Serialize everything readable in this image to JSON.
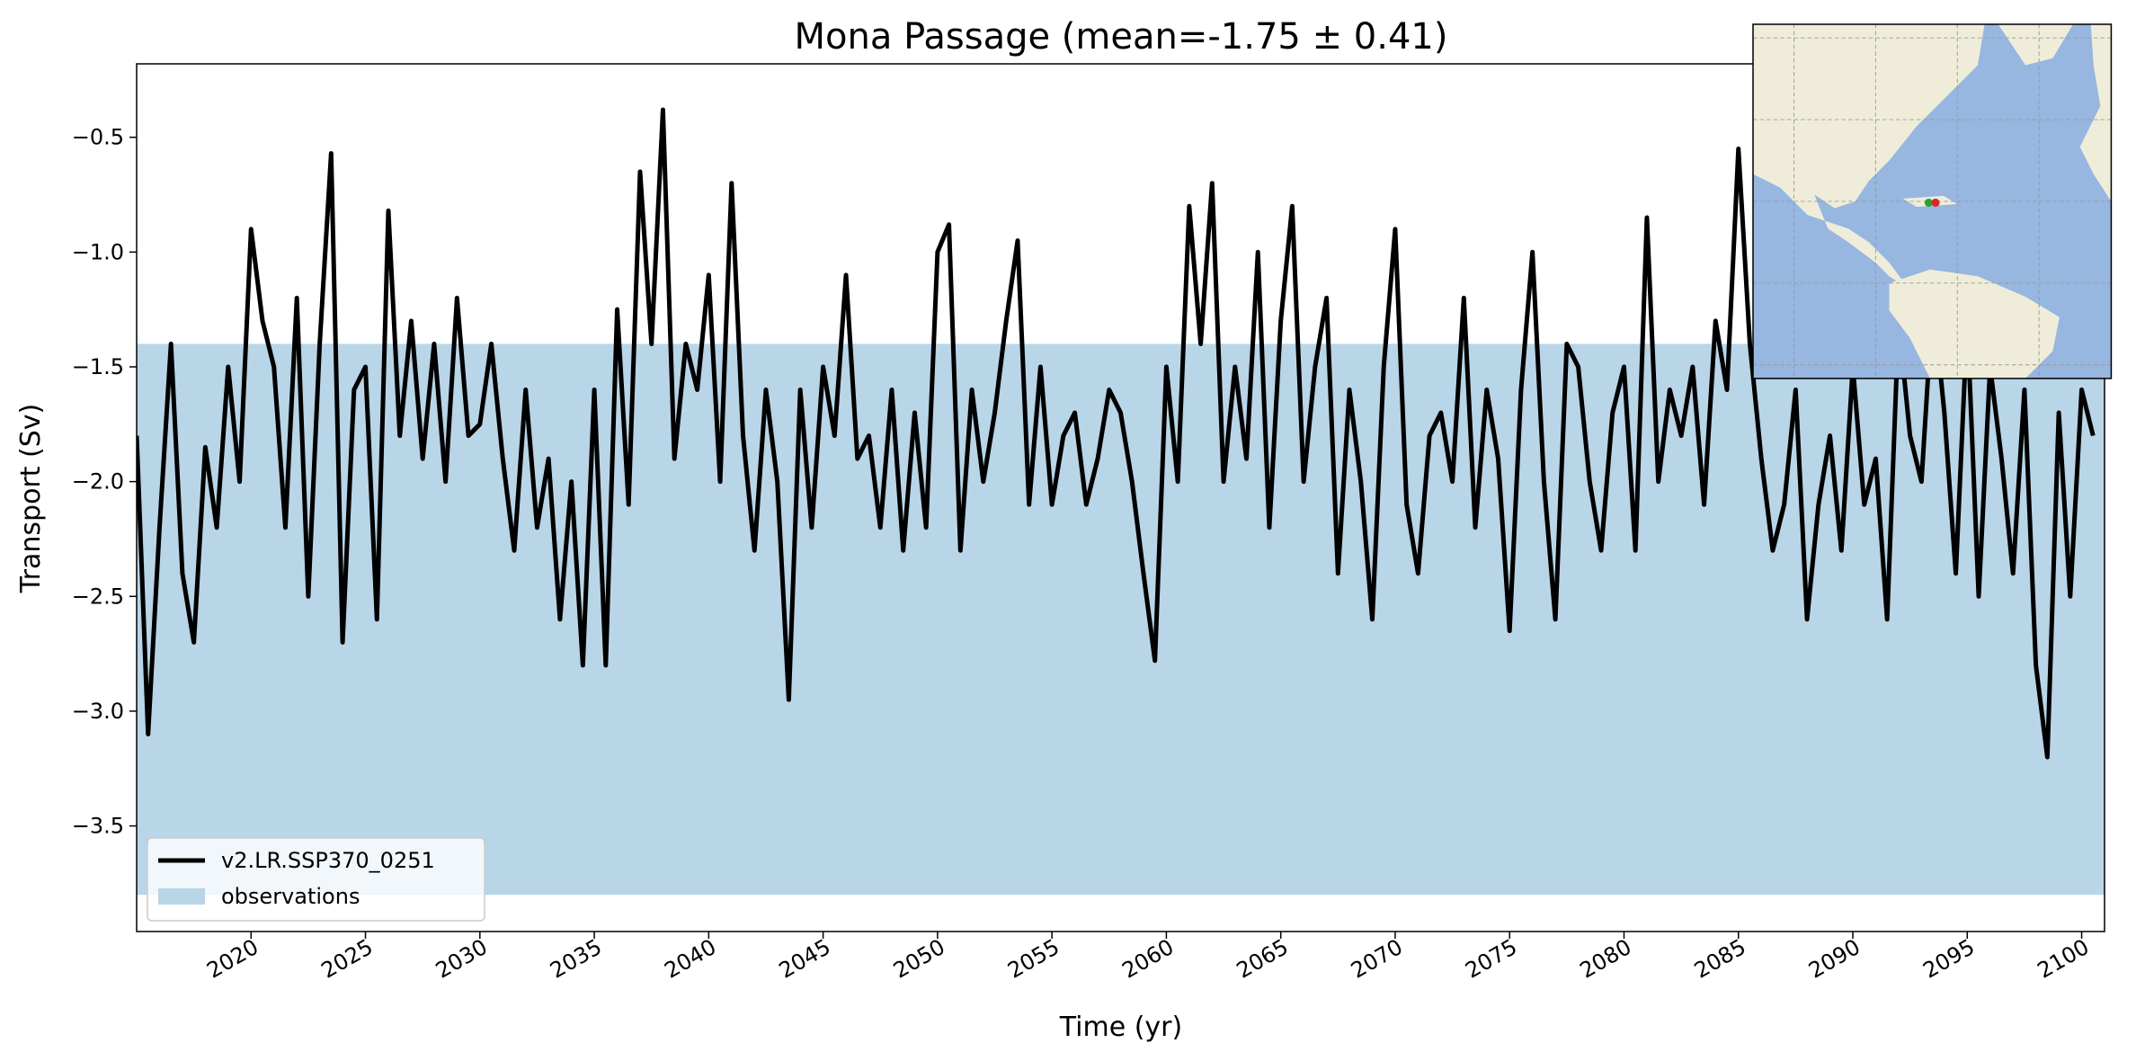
{
  "chart_data": {
    "type": "line",
    "title": "Mona Passage (mean=-1.75 ± 0.41)",
    "xlabel": "Time (yr)",
    "ylabel": "Transport (Sv)",
    "xlim": [
      2015,
      2101
    ],
    "ylim": [
      -3.96,
      -0.18
    ],
    "xticks": [
      2020,
      2025,
      2030,
      2035,
      2040,
      2045,
      2050,
      2055,
      2060,
      2065,
      2070,
      2075,
      2080,
      2085,
      2090,
      2095,
      2100
    ],
    "yticks": [
      {
        "value": -3.5,
        "label": "−3.5"
      },
      {
        "value": -3.0,
        "label": "−3.0"
      },
      {
        "value": -2.5,
        "label": "−2.5"
      },
      {
        "value": -2.0,
        "label": "−2.0"
      },
      {
        "value": -1.5,
        "label": "−1.5"
      },
      {
        "value": -1.0,
        "label": "−1.0"
      },
      {
        "value": -0.5,
        "label": "−0.5"
      }
    ],
    "legend": "lower left",
    "bands": [
      {
        "name": "observations",
        "color": "#b9d5e8",
        "range": [
          -1.4,
          -3.8
        ]
      }
    ],
    "x": [
      2015,
      2015.5,
      2016,
      2016.5,
      2017,
      2017.5,
      2018,
      2018.5,
      2019,
      2019.5,
      2020,
      2020.5,
      2021,
      2021.5,
      2022,
      2022.5,
      2023,
      2023.5,
      2024,
      2024.5,
      2025,
      2025.5,
      2026,
      2026.5,
      2027,
      2027.5,
      2028,
      2028.5,
      2029,
      2029.5,
      2030,
      2030.5,
      2031,
      2031.5,
      2032,
      2032.5,
      2033,
      2033.5,
      2034,
      2034.5,
      2035,
      2035.5,
      2036,
      2036.5,
      2037,
      2037.5,
      2038,
      2038.5,
      2039,
      2039.5,
      2040,
      2040.5,
      2041,
      2041.5,
      2042,
      2042.5,
      2043,
      2043.5,
      2044,
      2044.5,
      2045,
      2045.5,
      2046,
      2046.5,
      2047,
      2047.5,
      2048,
      2048.5,
      2049,
      2049.5,
      2050,
      2050.5,
      2051,
      2051.5,
      2052,
      2052.5,
      2053,
      2053.5,
      2054,
      2054.5,
      2055,
      2055.5,
      2056,
      2056.5,
      2057,
      2057.5,
      2058,
      2058.5,
      2059,
      2059.5,
      2060,
      2060.5,
      2061,
      2061.5,
      2062,
      2062.5,
      2063,
      2063.5,
      2064,
      2064.5,
      2065,
      2065.5,
      2066,
      2066.5,
      2067,
      2067.5,
      2068,
      2068.5,
      2069,
      2069.5,
      2070,
      2070.5,
      2071,
      2071.5,
      2072,
      2072.5,
      2073,
      2073.5,
      2074,
      2074.5,
      2075,
      2075.5,
      2076,
      2076.5,
      2077,
      2077.5,
      2078,
      2078.5,
      2079,
      2079.5,
      2080,
      2080.5,
      2081,
      2081.5,
      2082,
      2082.5,
      2083,
      2083.5,
      2084,
      2084.5,
      2085,
      2085.5,
      2086,
      2086.5,
      2087,
      2087.5,
      2088,
      2088.5,
      2089,
      2089.5,
      2090,
      2090.5,
      2091,
      2091.5,
      2092,
      2092.5,
      2093,
      2093.5,
      2094,
      2094.5,
      2095,
      2095.5,
      2096,
      2096.5,
      2097,
      2097.5,
      2098,
      2098.5,
      2099,
      2099.5,
      2100,
      2100.5
    ],
    "series": [
      {
        "name": "v2.LR.SSP370_0251",
        "color": "#000000",
        "values": [
          -1.8,
          -3.1,
          -2.2,
          -1.4,
          -2.4,
          -2.7,
          -1.85,
          -2.2,
          -1.5,
          -2.0,
          -0.9,
          -1.3,
          -1.5,
          -2.2,
          -1.2,
          -2.5,
          -1.4,
          -0.57,
          -2.7,
          -1.6,
          -1.5,
          -2.6,
          -0.82,
          -1.8,
          -1.3,
          -1.9,
          -1.4,
          -2.0,
          -1.2,
          -1.8,
          -1.75,
          -1.4,
          -1.9,
          -2.3,
          -1.6,
          -2.2,
          -1.9,
          -2.6,
          -2.0,
          -2.8,
          -1.6,
          -2.8,
          -1.25,
          -2.1,
          -0.65,
          -1.4,
          -0.38,
          -1.9,
          -1.4,
          -1.6,
          -1.1,
          -2.0,
          -0.7,
          -1.8,
          -2.3,
          -1.6,
          -2.0,
          -2.95,
          -1.6,
          -2.2,
          -1.5,
          -1.8,
          -1.1,
          -1.9,
          -1.8,
          -2.2,
          -1.6,
          -2.3,
          -1.7,
          -2.2,
          -1.0,
          -0.88,
          -2.3,
          -1.6,
          -2.0,
          -1.7,
          -1.3,
          -0.95,
          -2.1,
          -1.5,
          -2.1,
          -1.8,
          -1.7,
          -2.1,
          -1.9,
          -1.6,
          -1.7,
          -2.0,
          -2.4,
          -2.78,
          -1.5,
          -2.0,
          -0.8,
          -1.4,
          -0.7,
          -2.0,
          -1.5,
          -1.9,
          -1.0,
          -2.2,
          -1.3,
          -0.8,
          -2.0,
          -1.5,
          -1.2,
          -2.4,
          -1.6,
          -2.0,
          -2.6,
          -1.5,
          -0.9,
          -2.1,
          -2.4,
          -1.8,
          -1.7,
          -2.0,
          -1.2,
          -2.2,
          -1.6,
          -1.9,
          -2.65,
          -1.6,
          -1.0,
          -2.0,
          -2.6,
          -1.4,
          -1.5,
          -2.0,
          -2.3,
          -1.7,
          -1.5,
          -2.3,
          -0.85,
          -2.0,
          -1.6,
          -1.8,
          -1.5,
          -2.1,
          -1.3,
          -1.6,
          -0.55,
          -1.4,
          -1.9,
          -2.3,
          -2.1,
          -1.6,
          -2.6,
          -2.1,
          -1.8,
          -2.3,
          -1.5,
          -2.1,
          -1.9,
          -2.6,
          -1.3,
          -1.8,
          -2.0,
          -1.2,
          -1.7,
          -2.4,
          -1.3,
          -2.5,
          -1.5,
          -1.9,
          -2.4,
          -1.6,
          -2.8,
          -3.2,
          -1.7,
          -2.5,
          -1.6,
          -1.8
        ]
      }
    ]
  }
}
